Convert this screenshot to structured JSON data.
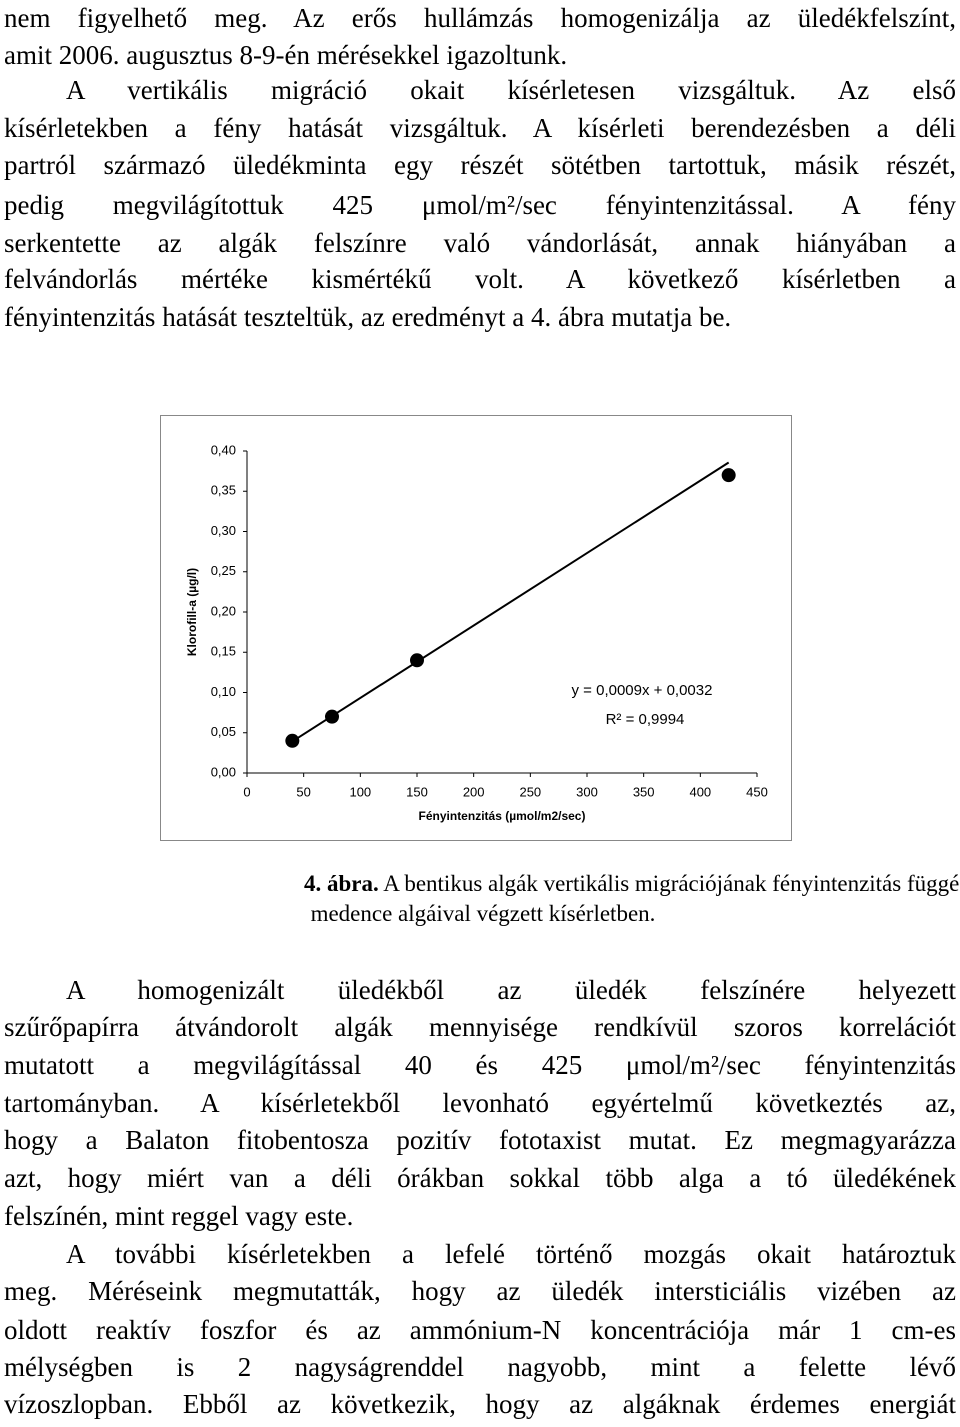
{
  "text": {
    "paragraphs": [
      [
        "nem figyelhető meg. Az erős hullámzás homogenizálja az üledékfelszínt,",
        "amit 2006. augusztus 8-9-én mérésekkel igazoltunk."
      ],
      [
        "A vertikális migráció okait kísérletesen vizsgáltuk. Az első",
        "kísérletekben a fény hatását vizsgáltuk. A kísérleti berendezésben a déli",
        "partról származó üledékminta egy részét sötétben tartottuk, másik részét,",
        "pedig megvilágítottuk 425 μmol/m²/sec fényintenzitással. A fény",
        "serkentette az algák felszínre való vándorlását, annak hiányában a",
        "felvándorlás mértéke kismértékű volt. A következő kísérletben a",
        "fényintenzitás hatását teszteltük, az eredményt a 4. ábra mutatja be."
      ],
      [
        "A homogenizált üledékből az üledék felszínére helyezett",
        "szűrőpapírra átvándorolt algák mennyisége rendkívül szoros korrelációt",
        "mutatott a megvilágítással 40 és 425 μmol/m²/sec fényintenzitás",
        "tartományban. A kísérletekből levonható egyértelmű következtés az,",
        "hogy a Balaton fitobentosza pozitív fototaxist mutat. Ez megmagyarázza",
        "azt, hogy miért van a déli órákban sokkal több alga a tó üledékének",
        "felszínén, mint reggel vagy este."
      ],
      [
        "A további kísérletekben a lefelé történő mozgás okait határoztuk",
        "meg. Méréseink megmutatták, hogy az üledék intersticiális vizében az",
        "oldott reaktív foszfor és az ammónium-N koncentrációja már 1 cm-es",
        "mélységben is 2 nagyságrenddel nagyobb, mint a felette lévő",
        "vízoszlopban. Ebből az következik, hogy az algáknak érdemes energiát"
      ]
    ]
  },
  "caption": {
    "label": "4. ábra.",
    "lines": [
      "A bentikus algák vertikális migrációjának fényintenzitás függése a Siófoki-",
      "medence algáival végzett kísérletben."
    ]
  },
  "chart_data": {
    "type": "scatter",
    "x": [
      40,
      75,
      150,
      425
    ],
    "values": [
      0.04,
      0.07,
      0.14,
      0.37
    ],
    "color": "#000000",
    "xlim": [
      0,
      450
    ],
    "ylim": [
      0,
      0.4
    ],
    "xticks": [
      0,
      50,
      100,
      150,
      200,
      250,
      300,
      350,
      400,
      450
    ],
    "yticks": [
      {
        "value": 0,
        "label": "0,00"
      },
      {
        "value": 0.05,
        "label": "0,05"
      },
      {
        "value": 0.1,
        "label": "0,10"
      },
      {
        "value": 0.15,
        "label": "0,15"
      },
      {
        "value": 0.2,
        "label": "0,20"
      },
      {
        "value": 0.25,
        "label": "0,25"
      },
      {
        "value": 0.3,
        "label": "0,30"
      },
      {
        "value": 0.35,
        "label": "0,35"
      },
      {
        "value": 0.4,
        "label": "0,40"
      }
    ],
    "xlabel": "Fényintenzitás (µmol/m2/sec)",
    "ylabel": "Klorofill-a (µg/l)",
    "trendline": {
      "slope": 0.0009,
      "intercept": 0.0032,
      "equation": "y = 0,0009x + 0,0032",
      "r2_label": "R² = 0,9994"
    }
  }
}
